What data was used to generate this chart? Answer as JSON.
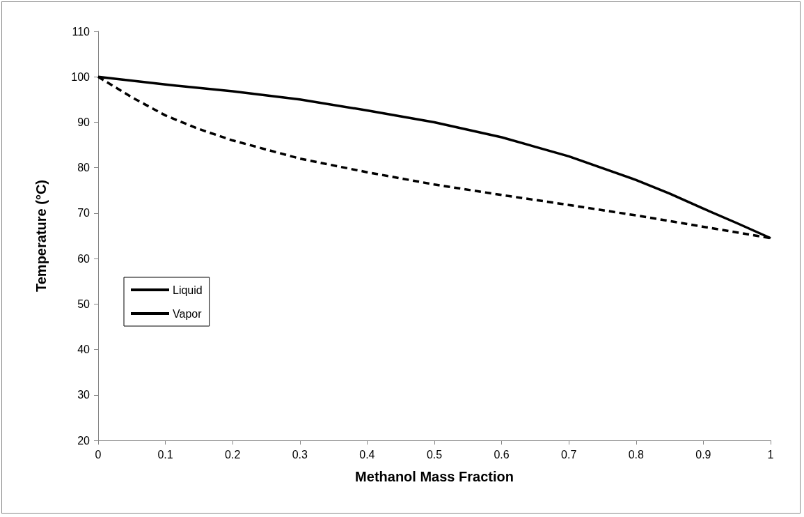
{
  "chart_data": {
    "type": "line",
    "xlabel": "Methanol Mass Fraction",
    "ylabel": "Temperature (°C)",
    "xlim": [
      0,
      1
    ],
    "xticks": [
      0,
      0.1,
      0.2,
      0.3,
      0.4,
      0.5,
      0.6,
      0.7,
      0.8,
      0.9,
      1
    ],
    "ylim": [
      20,
      110
    ],
    "yticks": [
      20,
      30,
      40,
      50,
      60,
      70,
      80,
      90,
      100,
      110
    ],
    "grid": false,
    "legend": "left",
    "marker": "none",
    "series": [
      {
        "name": "Liquid",
        "color": "#000000",
        "line_style": "dashed",
        "x": [
          0,
          0.05,
          0.1,
          0.15,
          0.2,
          0.3,
          0.4,
          0.5,
          0.6,
          0.7,
          0.8,
          0.9,
          1
        ],
        "values": [
          100,
          95.5,
          91.5,
          88.5,
          86,
          82,
          79,
          76.3,
          74,
          71.8,
          69.5,
          67,
          64.5
        ]
      },
      {
        "name": "Vapor",
        "color": "#000000",
        "line_style": "solid",
        "x": [
          0,
          0.1,
          0.2,
          0.3,
          0.4,
          0.5,
          0.6,
          0.7,
          0.8,
          0.85,
          0.9,
          0.95,
          1
        ],
        "values": [
          100,
          98.3,
          96.8,
          95,
          92.6,
          90,
          86.7,
          82.5,
          77.3,
          74.3,
          71,
          67.8,
          64.5
        ]
      }
    ]
  }
}
